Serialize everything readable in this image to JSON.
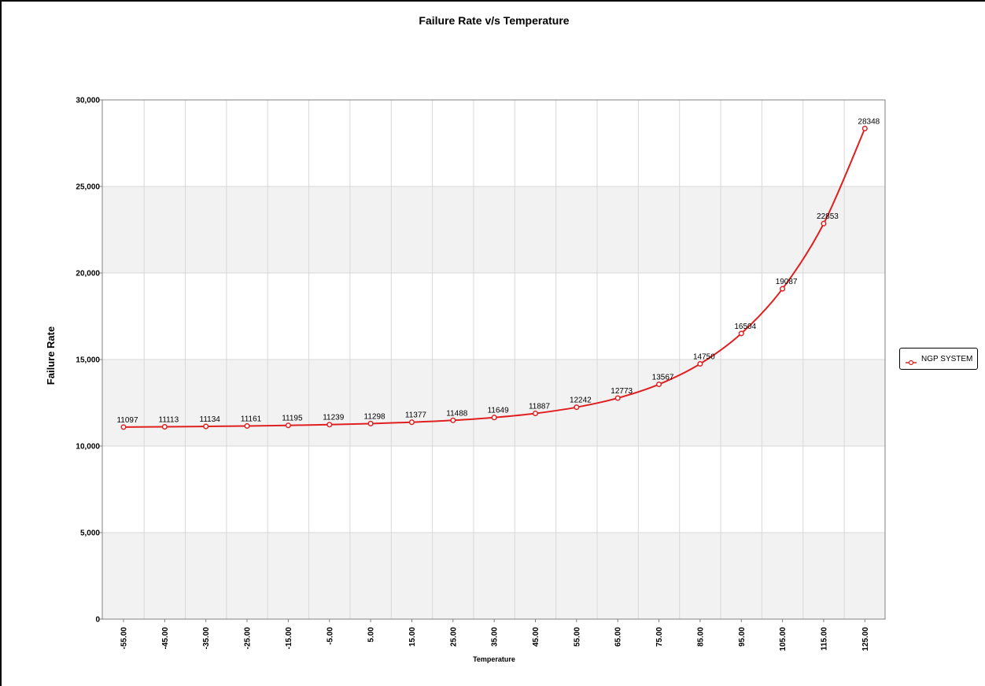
{
  "chart_data": {
    "type": "line",
    "title": "Failure Rate v/s Temperature",
    "xlabel": "Temperature",
    "ylabel": "Failure Rate",
    "ylim": [
      0,
      30000
    ],
    "y_ticks": [
      "0",
      "5,000",
      "10,000",
      "15,000",
      "20,000",
      "25,000",
      "30,000"
    ],
    "y_tick_values": [
      0,
      5000,
      10000,
      15000,
      20000,
      25000,
      30000
    ],
    "categories": [
      "-55.00",
      "-45.00",
      "-35.00",
      "-25.00",
      "-15.00",
      "-5.00",
      "5.00",
      "15.00",
      "25.00",
      "35.00",
      "45.00",
      "55.00",
      "65.00",
      "75.00",
      "85.00",
      "95.00",
      "105.00",
      "115.00",
      "125.00"
    ],
    "series": [
      {
        "name": "NGP SYSTEM",
        "color": "#e02020",
        "values": [
          11097,
          11113,
          11134,
          11161,
          11195,
          11239,
          11298,
          11377,
          11488,
          11649,
          11887,
          12242,
          12773,
          13567,
          14750,
          16504,
          19087,
          22853,
          28348
        ],
        "labels": [
          "11097",
          "11113",
          "11134",
          "11161",
          "11195",
          "11239",
          "11298",
          "11377",
          "11488",
          "11649",
          "11887",
          "12242",
          "12773",
          "13567",
          "14750",
          "16504",
          "19087",
          "22853",
          "28348"
        ]
      }
    ],
    "grid": true,
    "legend_position": "right",
    "band_color": "#f2f2f2",
    "line_color": "#e02020"
  }
}
